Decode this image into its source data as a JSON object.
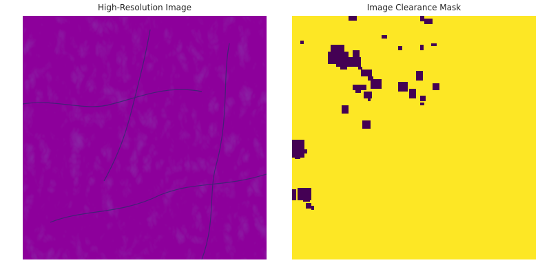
{
  "figure": {
    "left_title": "High-Resolution Image",
    "right_title": "Image Clearance Mask"
  },
  "colors": {
    "viridis_dark": "#440154",
    "viridis_blue": "#3b528b",
    "viridis_teal": "#21918c",
    "viridis_green": "#5ec962",
    "viridis_yellow": "#fde725"
  },
  "mask": {
    "clear_color": "#fde725",
    "cloud_color": "#440154"
  }
}
